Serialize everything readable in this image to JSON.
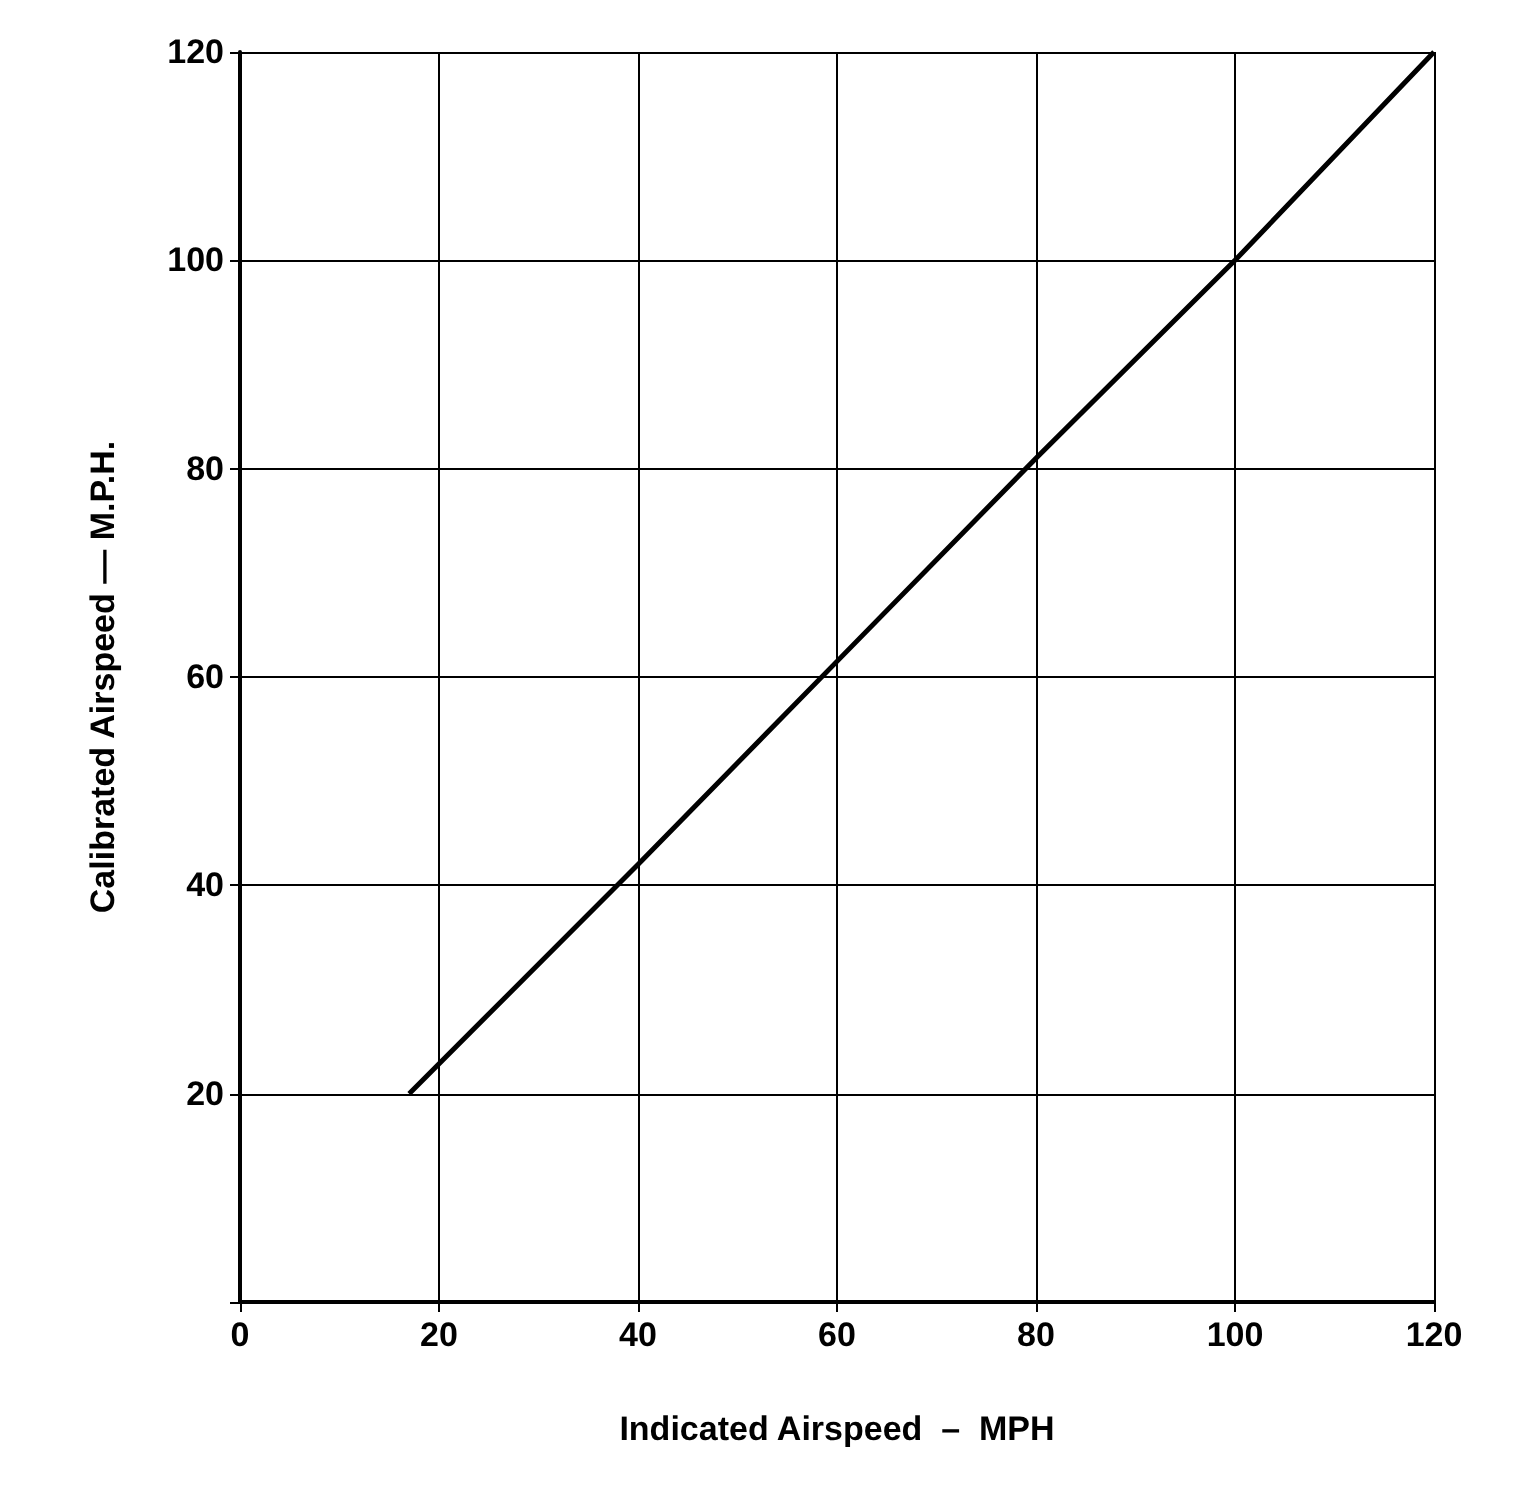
{
  "chart_data": {
    "type": "line",
    "xlabel": "Indicated Airspeed  –  MPH",
    "ylabel": "Calibrated Airspeed — M.P.H.",
    "x": [
      17,
      40,
      60,
      80,
      100,
      120
    ],
    "series": [
      {
        "color": "#000000",
        "values": [
          20,
          42,
          61.5,
          81,
          100,
          120
        ]
      }
    ],
    "xlim": [
      0,
      120
    ],
    "xticks": [
      0,
      20,
      40,
      60,
      80,
      100,
      120
    ],
    "ylim": [
      0,
      120
    ],
    "yticks": [
      {
        "value": 0,
        "label": null
      },
      20,
      40,
      60,
      80,
      100,
      120
    ],
    "grid": true,
    "marker": "none",
    "line_style": "solid"
  }
}
